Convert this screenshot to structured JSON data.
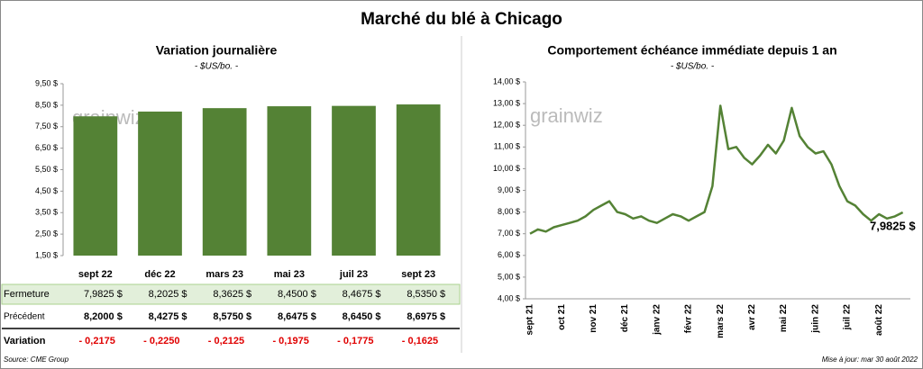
{
  "header": {
    "title": "Marché du blé à Chicago",
    "watermark": "grainwiz",
    "source": "Source: CME Group",
    "updated": "Mise à jour: mar 30 août 2022"
  },
  "chart_data": [
    {
      "type": "bar",
      "title": "Variation journalière",
      "subtitle": "- $US/bo. -",
      "categories": [
        "sept 22",
        "déc 22",
        "mars 23",
        "mai 23",
        "juil 23",
        "sept 23"
      ],
      "values": [
        7.9825,
        8.2025,
        8.3625,
        8.45,
        8.4675,
        8.535
      ],
      "value_labels": [
        "7,9825 $",
        "8,2025 $",
        "8,3625 $",
        "8,4500 $",
        "8,4675 $",
        "8,5350 $"
      ],
      "color": "#548235",
      "ylim": [
        1.5,
        9.5
      ],
      "yticks": [
        {
          "value": 1.5,
          "label": "1,50 $"
        },
        {
          "value": 2.5,
          "label": "2,50 $"
        },
        {
          "value": 3.5,
          "label": "3,50 $"
        },
        {
          "value": 4.5,
          "label": "4,50 $"
        },
        {
          "value": 5.5,
          "label": "5,50 $"
        },
        {
          "value": 6.5,
          "label": "6,50 $"
        },
        {
          "value": 7.5,
          "label": "7,50 $"
        },
        {
          "value": 8.5,
          "label": "8,50 $"
        },
        {
          "value": 9.5,
          "label": "9,50 $"
        }
      ]
    },
    {
      "type": "line",
      "title": "Comportement  échéance immédiate depuis 1 an",
      "subtitle": "- $US/bo. -",
      "categories": [
        "sept 21",
        null,
        null,
        null,
        "oct 21",
        null,
        null,
        null,
        "nov 21",
        null,
        null,
        null,
        "déc 21",
        null,
        null,
        null,
        "janv 22",
        null,
        null,
        null,
        "févr 22",
        null,
        null,
        null,
        "mars 22",
        null,
        null,
        null,
        "avr 22",
        null,
        null,
        null,
        "mai 22",
        null,
        null,
        null,
        "juin 22",
        null,
        null,
        null,
        "juil 22",
        null,
        null,
        null,
        "août 22",
        null,
        null,
        null
      ],
      "series": [
        {
          "name": "Échéance immédiate",
          "color": "#548235",
          "values": [
            7.0,
            7.2,
            7.1,
            7.3,
            7.4,
            7.5,
            7.6,
            7.8,
            8.1,
            8.3,
            8.5,
            8.0,
            7.9,
            7.7,
            7.8,
            7.6,
            7.5,
            7.7,
            7.9,
            7.8,
            7.6,
            7.8,
            8.0,
            9.2,
            12.9,
            10.9,
            11.0,
            10.5,
            10.2,
            10.6,
            11.1,
            10.7,
            11.3,
            12.8,
            11.5,
            11.0,
            10.7,
            10.8,
            10.2,
            9.2,
            8.5,
            8.3,
            7.9,
            7.6,
            7.9,
            7.7,
            7.8,
            7.9825
          ],
          "value_labels": [
            null,
            null,
            null,
            null,
            null,
            null,
            null,
            null,
            null,
            null,
            null,
            null,
            null,
            null,
            null,
            null,
            null,
            null,
            null,
            null,
            null,
            null,
            null,
            null,
            null,
            null,
            null,
            null,
            null,
            null,
            null,
            null,
            null,
            null,
            null,
            null,
            null,
            null,
            null,
            null,
            null,
            null,
            null,
            null,
            null,
            null,
            null,
            "7,9825 $"
          ]
        }
      ],
      "ylim": [
        4,
        14
      ],
      "yticks": [
        {
          "value": 4,
          "label": "4,00 $"
        },
        {
          "value": 5,
          "label": "5,00 $"
        },
        {
          "value": 6,
          "label": "6,00 $"
        },
        {
          "value": 7,
          "label": "7,00 $"
        },
        {
          "value": 8,
          "label": "8,00 $"
        },
        {
          "value": 9,
          "label": "9,00 $"
        },
        {
          "value": 10,
          "label": "10,00 $"
        },
        {
          "value": 11,
          "label": "11,00 $"
        },
        {
          "value": 12,
          "label": "12,00 $"
        },
        {
          "value": 13,
          "label": "13,00 $"
        },
        {
          "value": 14,
          "label": "14,00 $"
        }
      ]
    }
  ],
  "table": {
    "row_labels": [
      "Fermeture",
      "Précédent",
      "Variation"
    ],
    "previous": [
      "8,2000 $",
      "8,4275 $",
      "8,5750 $",
      "8,6475 $",
      "8,6450 $",
      "8,6975 $"
    ],
    "variation": [
      "- 0,2175",
      "- 0,2250",
      "- 0,2125",
      "- 0,1975",
      "- 0,1775",
      "- 0,1625"
    ]
  }
}
